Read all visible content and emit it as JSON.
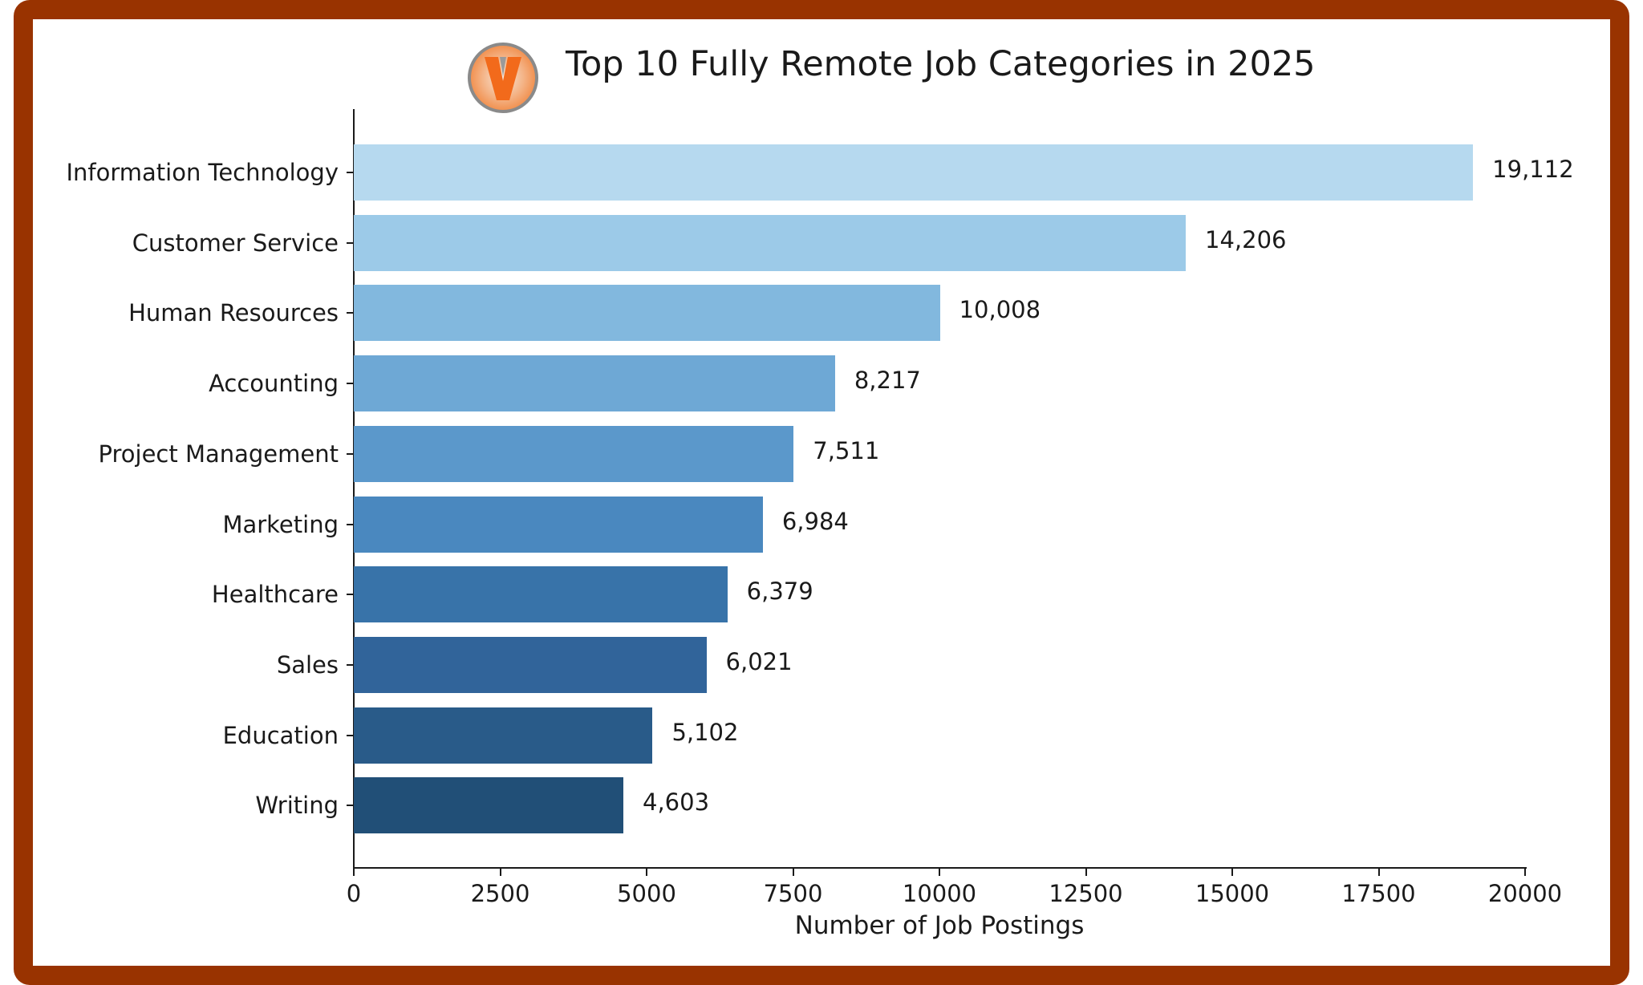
{
  "title": "Top 10 Fully Remote Job Categories in 2025",
  "logo": {
    "letter": "V",
    "name": "v-logo-icon"
  },
  "frame": {
    "border_color": "#993300"
  },
  "chart_data": {
    "type": "bar",
    "orientation": "horizontal",
    "title": "Top 10 Fully Remote Job Categories in 2025",
    "xlabel": "Number of Job Postings",
    "ylabel": "",
    "xlim": [
      0,
      20000
    ],
    "grid": false,
    "legend": null,
    "categories": [
      "Information Technology",
      "Customer Service",
      "Human Resources",
      "Accounting",
      "Project Management",
      "Marketing",
      "Healthcare",
      "Sales",
      "Education",
      "Writing"
    ],
    "values": [
      19112,
      14206,
      10008,
      8217,
      7511,
      6984,
      6379,
      6021,
      5102,
      4603
    ],
    "value_labels": [
      "19,112",
      "14,206",
      "10,008",
      "8,217",
      "7,511",
      "6,984",
      "6,379",
      "6,021",
      "5,102",
      "4,603"
    ],
    "colors": [
      "#b6d9ef",
      "#9ccae8",
      "#82b8de",
      "#6ea8d5",
      "#5b98cb",
      "#4a88bf",
      "#3873a9",
      "#31649a",
      "#295b89",
      "#214f77"
    ],
    "x_ticks": [
      0,
      2500,
      5000,
      7500,
      10000,
      12500,
      15000,
      17500,
      20000
    ],
    "x_tick_labels": [
      "0",
      "2500",
      "5000",
      "7500",
      "10000",
      "12500",
      "15000",
      "17500",
      "20000"
    ]
  }
}
